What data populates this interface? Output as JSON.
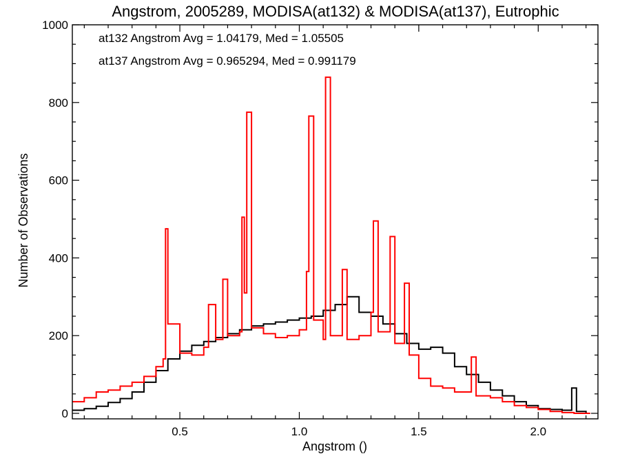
{
  "chart_data": {
    "type": "line",
    "title": "Angstrom, 2005289, MODISA(at132) & MODISA(at137), Eutrophic",
    "xlabel": "Angstrom ()",
    "ylabel": "Number of Observations",
    "xlim": [
      0.05,
      2.25
    ],
    "ylim": [
      0,
      1000
    ],
    "xticks": [
      "0.5",
      "1.0",
      "1.5",
      "2.0"
    ],
    "xtick_values": [
      0.5,
      1.0,
      1.5,
      2.0
    ],
    "yticks": [
      "0",
      "200",
      "400",
      "600",
      "800",
      "1000"
    ],
    "ytick_values": [
      0,
      200,
      400,
      600,
      800,
      1000
    ],
    "grid": false,
    "annotations": [
      {
        "text": "at132 Angstrom Avg = 1.04179, Med = 1.05505",
        "color": "#000000"
      },
      {
        "text": "at137 Angstrom Avg = 0.965294, Med = 0.991179",
        "color": "#ff0000"
      }
    ],
    "series": [
      {
        "color": "#000000",
        "step": true,
        "points": [
          [
            0.05,
            8
          ],
          [
            0.1,
            12
          ],
          [
            0.15,
            18
          ],
          [
            0.2,
            28
          ],
          [
            0.25,
            38
          ],
          [
            0.3,
            55
          ],
          [
            0.35,
            80
          ],
          [
            0.4,
            110
          ],
          [
            0.45,
            140
          ],
          [
            0.5,
            160
          ],
          [
            0.55,
            175
          ],
          [
            0.6,
            185
          ],
          [
            0.65,
            195
          ],
          [
            0.7,
            205
          ],
          [
            0.75,
            215
          ],
          [
            0.8,
            225
          ],
          [
            0.85,
            230
          ],
          [
            0.9,
            235
          ],
          [
            0.95,
            240
          ],
          [
            1.0,
            245
          ],
          [
            1.05,
            250
          ],
          [
            1.1,
            265
          ],
          [
            1.15,
            280
          ],
          [
            1.2,
            300
          ],
          [
            1.25,
            260
          ],
          [
            1.3,
            250
          ],
          [
            1.35,
            230
          ],
          [
            1.4,
            205
          ],
          [
            1.45,
            180
          ],
          [
            1.5,
            165
          ],
          [
            1.55,
            170
          ],
          [
            1.6,
            155
          ],
          [
            1.65,
            120
          ],
          [
            1.7,
            100
          ],
          [
            1.75,
            80
          ],
          [
            1.8,
            60
          ],
          [
            1.85,
            45
          ],
          [
            1.9,
            30
          ],
          [
            1.95,
            20
          ],
          [
            2.0,
            12
          ],
          [
            2.05,
            10
          ],
          [
            2.1,
            8
          ],
          [
            2.14,
            65
          ],
          [
            2.16,
            5
          ],
          [
            2.2,
            0
          ]
        ]
      },
      {
        "color": "#ff0000",
        "step": true,
        "points": [
          [
            0.05,
            30
          ],
          [
            0.1,
            40
          ],
          [
            0.15,
            55
          ],
          [
            0.2,
            60
          ],
          [
            0.25,
            70
          ],
          [
            0.3,
            80
          ],
          [
            0.35,
            95
          ],
          [
            0.4,
            120
          ],
          [
            0.43,
            140
          ],
          [
            0.44,
            475
          ],
          [
            0.45,
            230
          ],
          [
            0.5,
            155
          ],
          [
            0.55,
            150
          ],
          [
            0.6,
            170
          ],
          [
            0.62,
            280
          ],
          [
            0.65,
            190
          ],
          [
            0.68,
            345
          ],
          [
            0.7,
            200
          ],
          [
            0.75,
            210
          ],
          [
            0.76,
            505
          ],
          [
            0.77,
            310
          ],
          [
            0.78,
            775
          ],
          [
            0.8,
            220
          ],
          [
            0.85,
            205
          ],
          [
            0.9,
            195
          ],
          [
            0.95,
            200
          ],
          [
            1.0,
            215
          ],
          [
            1.03,
            365
          ],
          [
            1.04,
            765
          ],
          [
            1.06,
            240
          ],
          [
            1.1,
            190
          ],
          [
            1.11,
            865
          ],
          [
            1.13,
            200
          ],
          [
            1.15,
            200
          ],
          [
            1.18,
            370
          ],
          [
            1.2,
            190
          ],
          [
            1.25,
            200
          ],
          [
            1.3,
            260
          ],
          [
            1.31,
            495
          ],
          [
            1.33,
            210
          ],
          [
            1.38,
            455
          ],
          [
            1.4,
            180
          ],
          [
            1.44,
            335
          ],
          [
            1.46,
            150
          ],
          [
            1.5,
            90
          ],
          [
            1.55,
            70
          ],
          [
            1.6,
            65
          ],
          [
            1.65,
            55
          ],
          [
            1.7,
            55
          ],
          [
            1.72,
            145
          ],
          [
            1.74,
            45
          ],
          [
            1.8,
            40
          ],
          [
            1.85,
            30
          ],
          [
            1.9,
            20
          ],
          [
            1.95,
            15
          ],
          [
            2.0,
            10
          ],
          [
            2.05,
            5
          ],
          [
            2.1,
            2
          ],
          [
            2.15,
            0
          ],
          [
            2.2,
            0
          ]
        ]
      }
    ]
  }
}
